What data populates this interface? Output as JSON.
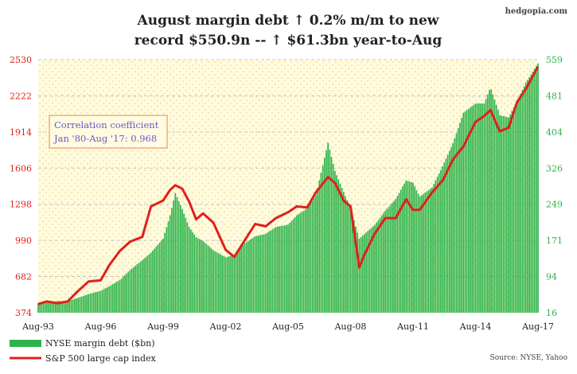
{
  "brand": "hedgopia.com",
  "source": "Source: NYSE, Yahoo",
  "colors": {
    "bars": "#2db34a",
    "line": "#e0201b",
    "left_axis": "#e0201b",
    "right_axis": "#2db34a",
    "annotation_text": "#6a5acd",
    "annotation_border": "#e6a15c",
    "plot_bg": "#fffbe0"
  },
  "chart_data": {
    "type": "bar",
    "title_lines": [
      "August margin debt ↑ 0.2% m/m to new",
      "record $550.9n -- ↑ $61.3bn year-to-Aug"
    ],
    "x_tick_labels": [
      "Aug-93",
      "Aug-96",
      "Aug-99",
      "Aug-02",
      "Aug-05",
      "Aug-08",
      "Aug-11",
      "Aug-14",
      "Aug-17"
    ],
    "x_tick_years": [
      1993.583,
      1996.583,
      1999.583,
      2002.583,
      2005.583,
      2008.583,
      2011.583,
      2014.583,
      2017.583
    ],
    "x_range": [
      1993.583,
      2017.583
    ],
    "left_axis": {
      "ticks": [
        "374",
        "682",
        "990",
        "1298",
        "1606",
        "1914",
        "2222",
        "2530"
      ],
      "range": [
        374,
        2530
      ]
    },
    "right_axis": {
      "ticks": [
        "16",
        "94",
        "171",
        "249",
        "326",
        "404",
        "481",
        "559"
      ],
      "range": [
        16,
        559
      ]
    },
    "annotation": [
      "Correlation coefficient",
      "Jan '80-Aug '17: 0.968"
    ],
    "grid": true,
    "legend_position": "bottom-left",
    "series": [
      {
        "name": "NYSE margin debt ($bn)",
        "kind": "bar",
        "axis": "right",
        "points": [
          [
            1993.583,
            37
          ],
          [
            1994.0,
            39
          ],
          [
            1994.5,
            41
          ],
          [
            1995.0,
            41
          ],
          [
            1995.5,
            48
          ],
          [
            1996.0,
            56
          ],
          [
            1996.583,
            63
          ],
          [
            1997.0,
            73
          ],
          [
            1997.5,
            86
          ],
          [
            1998.0,
            108
          ],
          [
            1998.583,
            129
          ],
          [
            1999.0,
            145
          ],
          [
            1999.583,
            175
          ],
          [
            1999.917,
            225
          ],
          [
            2000.167,
            273
          ],
          [
            2000.5,
            238
          ],
          [
            2000.833,
            200
          ],
          [
            2001.167,
            178
          ],
          [
            2001.5,
            170
          ],
          [
            2002.0,
            150
          ],
          [
            2002.583,
            135
          ],
          [
            2003.0,
            140
          ],
          [
            2003.5,
            165
          ],
          [
            2004.0,
            180
          ],
          [
            2004.5,
            185
          ],
          [
            2005.0,
            200
          ],
          [
            2005.583,
            205
          ],
          [
            2006.0,
            225
          ],
          [
            2006.5,
            240
          ],
          [
            2006.917,
            268
          ],
          [
            2007.5,
            381
          ],
          [
            2007.833,
            320
          ],
          [
            2008.25,
            275
          ],
          [
            2008.583,
            240
          ],
          [
            2009.0,
            175
          ],
          [
            2009.25,
            185
          ],
          [
            2009.75,
            205
          ],
          [
            2010.25,
            235
          ],
          [
            2010.75,
            260
          ],
          [
            2011.25,
            300
          ],
          [
            2011.583,
            295
          ],
          [
            2011.9,
            265
          ],
          [
            2012.5,
            285
          ],
          [
            2013.0,
            330
          ],
          [
            2013.5,
            380
          ],
          [
            2014.0,
            445
          ],
          [
            2014.583,
            465
          ],
          [
            2015.0,
            465
          ],
          [
            2015.3,
            500
          ],
          [
            2015.75,
            440
          ],
          [
            2016.17,
            435
          ],
          [
            2016.583,
            470
          ],
          [
            2017.0,
            510
          ],
          [
            2017.583,
            551
          ]
        ]
      },
      {
        "name": "S&P 500 large cap index",
        "kind": "line",
        "axis": "left",
        "points": [
          [
            1993.583,
            448
          ],
          [
            1994.0,
            470
          ],
          [
            1994.5,
            455
          ],
          [
            1995.0,
            470
          ],
          [
            1995.5,
            560
          ],
          [
            1996.0,
            640
          ],
          [
            1996.583,
            650
          ],
          [
            1997.0,
            780
          ],
          [
            1997.5,
            900
          ],
          [
            1998.0,
            980
          ],
          [
            1998.583,
            1020
          ],
          [
            1999.0,
            1280
          ],
          [
            1999.583,
            1330
          ],
          [
            1999.917,
            1420
          ],
          [
            2000.167,
            1460
          ],
          [
            2000.5,
            1430
          ],
          [
            2000.833,
            1320
          ],
          [
            2001.167,
            1170
          ],
          [
            2001.5,
            1220
          ],
          [
            2002.0,
            1140
          ],
          [
            2002.583,
            910
          ],
          [
            2003.0,
            850
          ],
          [
            2003.5,
            990
          ],
          [
            2004.0,
            1130
          ],
          [
            2004.5,
            1110
          ],
          [
            2005.0,
            1180
          ],
          [
            2005.583,
            1230
          ],
          [
            2006.0,
            1280
          ],
          [
            2006.5,
            1270
          ],
          [
            2006.917,
            1400
          ],
          [
            2007.5,
            1530
          ],
          [
            2007.833,
            1480
          ],
          [
            2008.25,
            1330
          ],
          [
            2008.583,
            1280
          ],
          [
            2009.0,
            760
          ],
          [
            2009.25,
            870
          ],
          [
            2009.75,
            1050
          ],
          [
            2010.25,
            1180
          ],
          [
            2010.75,
            1180
          ],
          [
            2011.25,
            1340
          ],
          [
            2011.583,
            1250
          ],
          [
            2011.9,
            1250
          ],
          [
            2012.5,
            1400
          ],
          [
            2013.0,
            1500
          ],
          [
            2013.5,
            1680
          ],
          [
            2014.0,
            1790
          ],
          [
            2014.583,
            2000
          ],
          [
            2015.0,
            2050
          ],
          [
            2015.3,
            2100
          ],
          [
            2015.75,
            1920
          ],
          [
            2016.17,
            1950
          ],
          [
            2016.583,
            2170
          ],
          [
            2017.0,
            2280
          ],
          [
            2017.583,
            2470
          ]
        ]
      }
    ]
  }
}
